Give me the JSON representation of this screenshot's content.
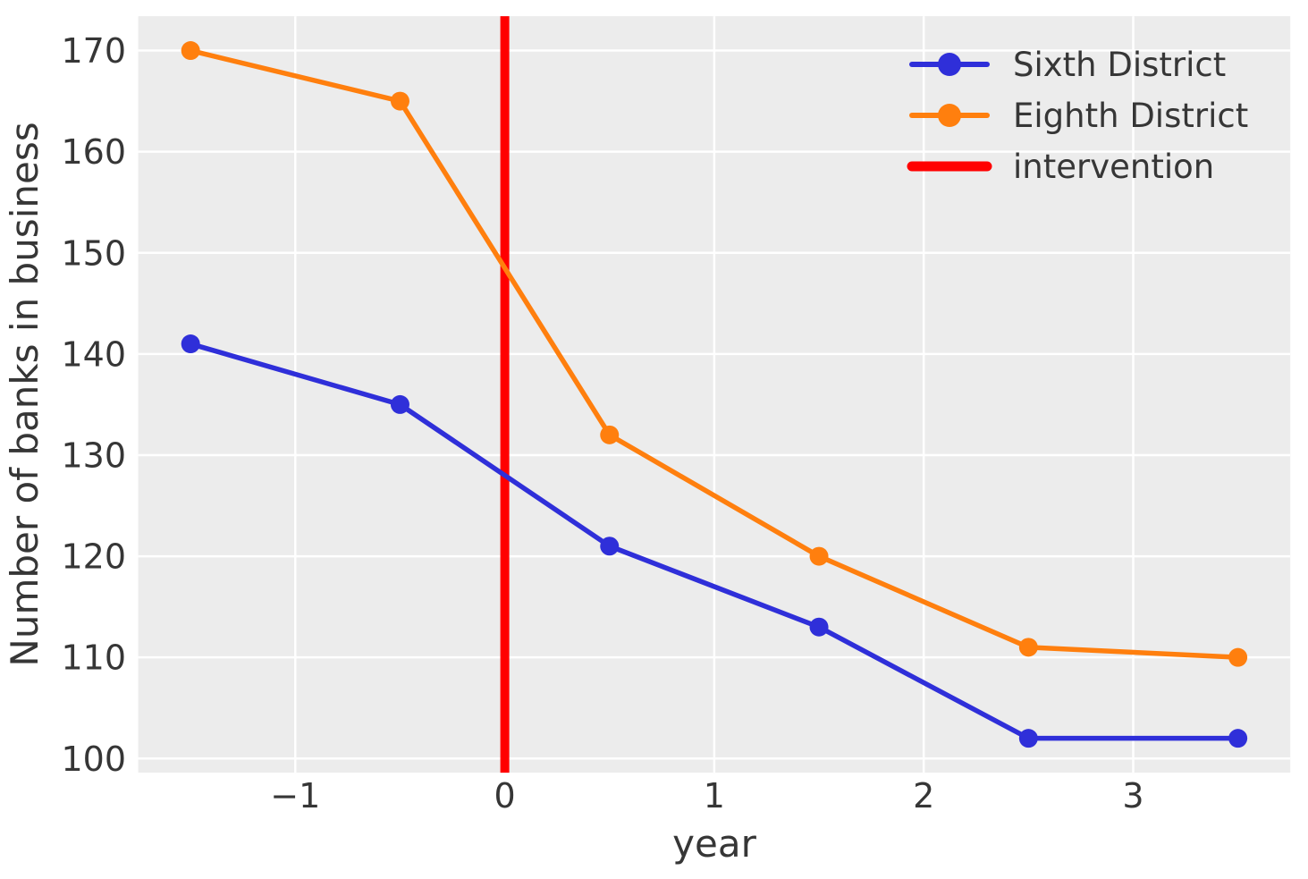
{
  "figure": {
    "background": "#ffffff",
    "axes_background": "#ececec",
    "grid_color": "#ffffff",
    "text_color": "#363636"
  },
  "chart_data": {
    "type": "line",
    "title": "",
    "xlabel": "year",
    "ylabel": "Number of banks in business",
    "xlim": [
      -1.75,
      3.75
    ],
    "ylim": [
      98.6,
      173.4
    ],
    "grid": true,
    "legend_position": "upper-right",
    "xticks": [
      {
        "value": -1,
        "label": "−1"
      },
      {
        "value": 0,
        "label": "0"
      },
      {
        "value": 1,
        "label": "1"
      },
      {
        "value": 2,
        "label": "2"
      },
      {
        "value": 3,
        "label": "3"
      }
    ],
    "yticks": [
      {
        "value": 100,
        "label": "100"
      },
      {
        "value": 110,
        "label": "110"
      },
      {
        "value": 120,
        "label": "120"
      },
      {
        "value": 130,
        "label": "130"
      },
      {
        "value": 140,
        "label": "140"
      },
      {
        "value": 150,
        "label": "150"
      },
      {
        "value": 160,
        "label": "160"
      },
      {
        "value": 170,
        "label": "170"
      }
    ],
    "x": [
      -1.5,
      -0.5,
      0.5,
      1.5,
      2.5,
      3.5
    ],
    "series": [
      {
        "name": "Sixth District",
        "color": "#2f2fd9",
        "values": [
          141,
          135,
          121,
          113,
          102,
          102
        ]
      },
      {
        "name": "Eighth District",
        "color": "#ff7f0e",
        "values": [
          170,
          165,
          132,
          120,
          111,
          110
        ]
      }
    ],
    "intervention": {
      "label": "intervention",
      "color": "#ff0000",
      "x": 0
    },
    "legend": {
      "entries": [
        {
          "label": "Sixth District",
          "color": "#2f2fd9",
          "marker": true,
          "thick": false
        },
        {
          "label": "Eighth District",
          "color": "#ff7f0e",
          "marker": true,
          "thick": false
        },
        {
          "label": "intervention",
          "color": "#ff0000",
          "marker": false,
          "thick": true
        }
      ]
    }
  }
}
